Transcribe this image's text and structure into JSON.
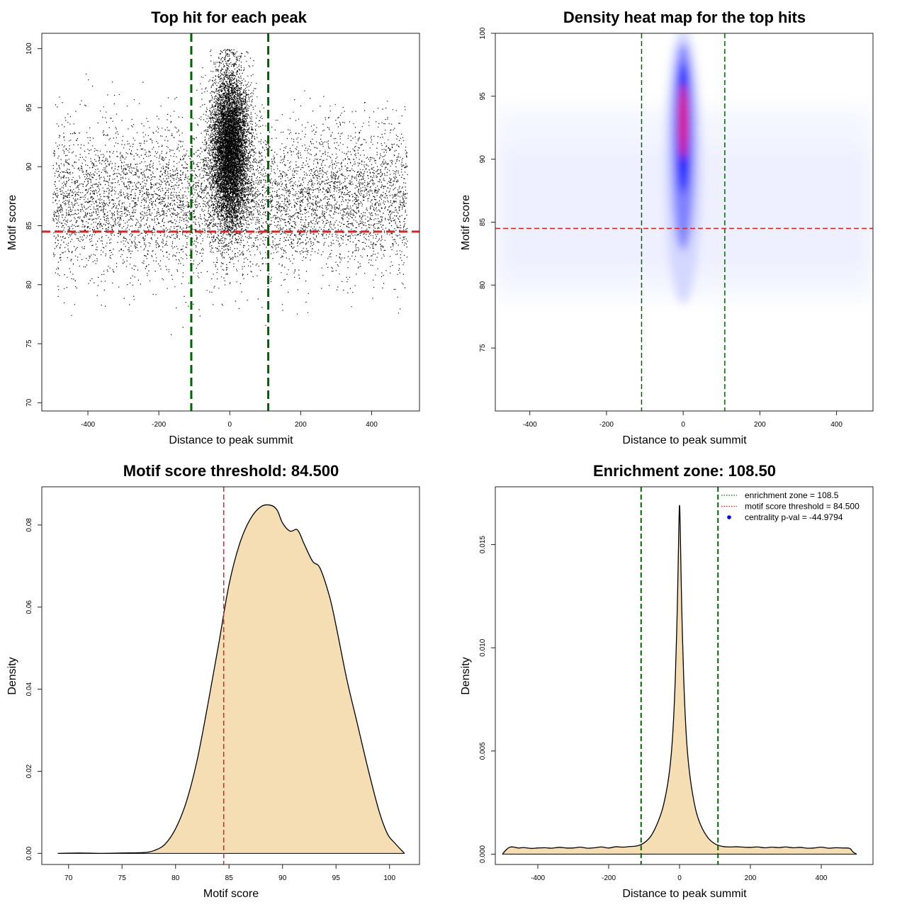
{
  "chart_data": [
    {
      "type": "scatter",
      "title": "Top hit for each peak",
      "xlabel": "Distance to peak summit",
      "ylabel": "Motif score",
      "xlim": [
        -530,
        535
      ],
      "ylim": [
        69.3,
        101.3
      ],
      "xticks": [
        -400,
        -200,
        0,
        200,
        400
      ],
      "yticks": [
        70,
        75,
        80,
        85,
        90,
        95,
        100
      ],
      "vlines": [
        -108.5,
        108.5
      ],
      "hline": 84.5,
      "colors": {
        "points": "#000000",
        "vlines": "#006400",
        "hline": "#dd2222"
      },
      "distribution": {
        "n_points": 15000,
        "central_fraction": 0.55,
        "x_range": [
          -500,
          500
        ],
        "score_range": [
          70.4,
          100
        ]
      }
    },
    {
      "type": "heatmap",
      "title": "Density heat map for the top hits",
      "xlabel": "Distance to peak summit",
      "ylabel": "Motif score",
      "xlim": [
        -490,
        495
      ],
      "ylim": [
        70,
        100
      ],
      "xticks": [
        -400,
        -200,
        0,
        200,
        400
      ],
      "yticks": [
        75,
        80,
        85,
        90,
        95,
        100
      ],
      "vlines": [
        -108.5,
        108.5
      ],
      "hline": 84.5,
      "colors": {
        "low": "#ffffff",
        "mid": "#0000ff",
        "high": "#ff0000",
        "vlines": "#006400",
        "hline": "#dd2222"
      },
      "hotspot": {
        "x": 0,
        "y": 93,
        "y_extent": [
          84,
          99
        ]
      }
    },
    {
      "type": "area",
      "title": "Motif score threshold: 84.500",
      "xlabel": "Motif score",
      "ylabel": "Density",
      "xlim": [
        67.5,
        102.8
      ],
      "ylim": [
        -0.0027,
        0.0893
      ],
      "xticks": [
        70,
        75,
        80,
        85,
        90,
        95,
        100
      ],
      "yticks": [
        0.0,
        0.02,
        0.04,
        0.06,
        0.08
      ],
      "ytick_labels": [
        "0.00",
        "0.02",
        "0.04",
        "0.06",
        "0.08"
      ],
      "vlines": [
        84.5
      ],
      "colors": {
        "fill": "#f5deb3",
        "line": "#000000",
        "vline": "#dd2222"
      },
      "x": [
        69,
        71,
        73,
        75,
        77,
        78,
        79,
        80,
        81,
        82,
        83,
        84,
        85,
        86,
        87,
        88,
        88.9,
        89.5,
        90,
        90.7,
        91.4,
        92,
        92.8,
        93.5,
        94.4,
        95,
        96,
        97,
        98,
        99,
        99.8,
        100.5,
        101.4
      ],
      "values": [
        0.0,
        0.0001,
        0.0,
        0.0001,
        0.0002,
        0.0007,
        0.0022,
        0.006,
        0.0125,
        0.0225,
        0.036,
        0.0505,
        0.0655,
        0.0755,
        0.0815,
        0.0845,
        0.0848,
        0.0836,
        0.0805,
        0.0785,
        0.0788,
        0.0755,
        0.0712,
        0.0695,
        0.0625,
        0.0555,
        0.0425,
        0.0315,
        0.0205,
        0.0105,
        0.0048,
        0.0025,
        0.0
      ]
    },
    {
      "type": "area",
      "title": "Enrichment zone: 108.50",
      "xlabel": "Distance to peak summit",
      "ylabel": "Density",
      "xlim": [
        -520,
        546
      ],
      "ylim": [
        -0.0005,
        0.0178
      ],
      "xticks": [
        -400,
        -200,
        0,
        200,
        400
      ],
      "yticks": [
        0.0,
        0.005,
        0.01,
        0.015
      ],
      "ytick_labels": [
        "0.000",
        "0.005",
        "0.010",
        "0.015"
      ],
      "vlines": [
        -108.5,
        108.5
      ],
      "colors": {
        "fill": "#f5deb3",
        "line": "#000000",
        "vlines": "#006400",
        "legend_zone": "#006400",
        "legend_threshold": "#dd2222",
        "legend_pval": "#0000ff"
      },
      "x": [
        -500,
        -490,
        -480,
        -470,
        -455,
        -440,
        -420,
        -400,
        -380,
        -360,
        -340,
        -320,
        -300,
        -280,
        -260,
        -240,
        -220,
        -200,
        -180,
        -160,
        -140,
        -120,
        -100,
        -80,
        -60,
        -45,
        -30,
        -20,
        -12,
        -6,
        -2,
        0,
        2,
        6,
        12,
        20,
        30,
        45,
        60,
        80,
        100,
        120,
        140,
        160,
        180,
        200,
        220,
        240,
        260,
        280,
        300,
        320,
        340,
        360,
        380,
        400,
        420,
        440,
        460,
        480,
        490,
        500
      ],
      "values": [
        0.0,
        0.0002,
        0.00033,
        0.00035,
        0.0003,
        0.00032,
        0.00028,
        0.0003,
        0.00031,
        0.00029,
        0.00033,
        0.0003,
        0.0003,
        0.00034,
        0.00029,
        0.00031,
        0.00035,
        0.0003,
        0.00036,
        0.00034,
        0.00037,
        0.0004,
        0.00055,
        0.0009,
        0.0016,
        0.0024,
        0.0038,
        0.0056,
        0.0085,
        0.0122,
        0.0158,
        0.0169,
        0.0158,
        0.0121,
        0.0084,
        0.0055,
        0.0037,
        0.0022,
        0.0014,
        0.0008,
        0.0005,
        0.00038,
        0.00035,
        0.00036,
        0.00034,
        0.00033,
        0.00035,
        0.00031,
        0.00034,
        0.00032,
        0.00035,
        0.00031,
        0.00033,
        0.00029,
        0.0003,
        0.00034,
        0.00029,
        0.00031,
        0.0003,
        0.00028,
        0.0001,
        0.0
      ],
      "legend": [
        {
          "label": "enrichment zone = 108.5",
          "style": "dotted"
        },
        {
          "label": "motif score threshold = 84.500",
          "style": "dotted"
        },
        {
          "label": "centrality p-val = -44.9794",
          "style": "dot"
        }
      ]
    }
  ]
}
